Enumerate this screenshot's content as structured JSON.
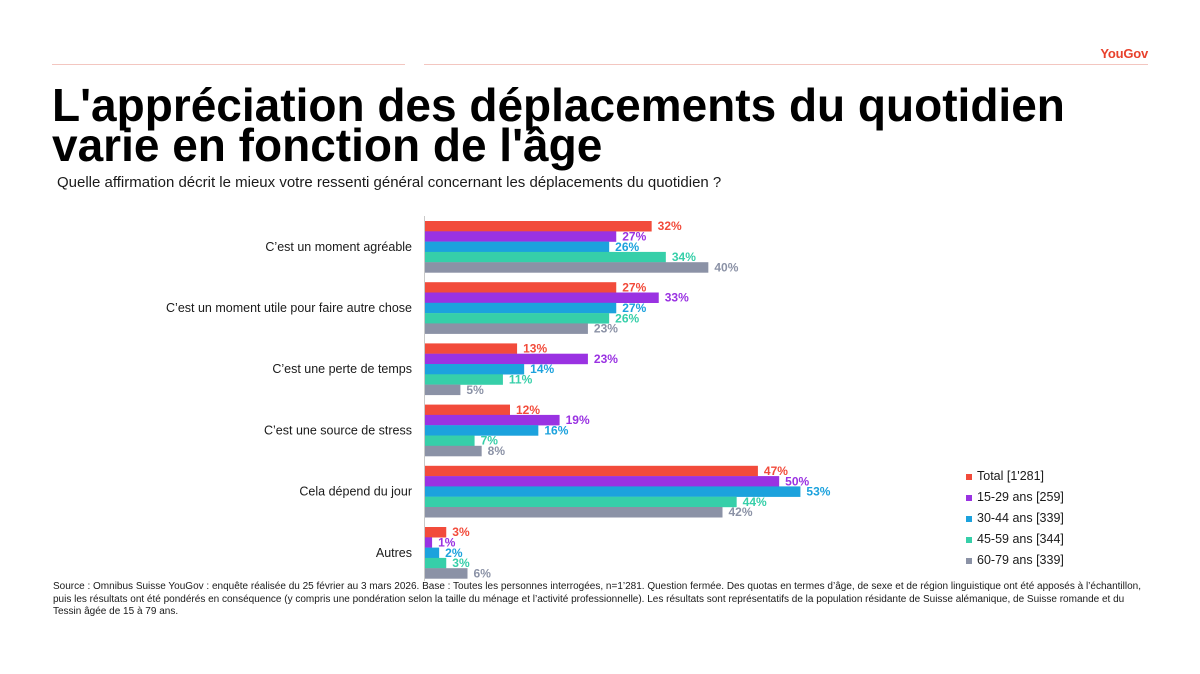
{
  "brand": {
    "logo_text": "YouGov",
    "accent_color": "#e8412c"
  },
  "title": "L'appréciation des déplacements du quotidien varie en fonction de l'âge",
  "subtitle": "Quelle affirmation décrit le mieux votre ressenti général concernant les déplacements du quotidien ?",
  "chart_data": {
    "type": "bar",
    "orientation": "horizontal",
    "xlim": [
      0,
      60
    ],
    "grid": false,
    "legend_position": "right",
    "value_suffix": "%",
    "categories": [
      "C’est un moment agréable",
      "C’est un moment utile pour faire autre chose",
      "C’est une perte de temps",
      "C’est une source de stress",
      "Cela dépend du jour",
      "Autres"
    ],
    "series": [
      {
        "name": "Total [1'281]",
        "color": "#f24b3b",
        "values": [
          32,
          27,
          13,
          12,
          47,
          3
        ]
      },
      {
        "name": "15-29 ans [259]",
        "color": "#9a32e2",
        "values": [
          27,
          33,
          23,
          19,
          50,
          1
        ]
      },
      {
        "name": "30-44 ans [339]",
        "color": "#1ca2dd",
        "values": [
          26,
          27,
          14,
          16,
          53,
          2
        ]
      },
      {
        "name": "45-59 ans [344]",
        "color": "#36cfa9",
        "values": [
          34,
          26,
          11,
          7,
          44,
          3
        ]
      },
      {
        "name": "60-79 ans [339]",
        "color": "#8b92a6",
        "values": [
          40,
          23,
          5,
          8,
          42,
          6
        ]
      }
    ]
  },
  "source": "Source : Omnibus Suisse YouGov : enquête réalisée du 25 février au 3 mars 2026. Base : Toutes les personnes interrogées, n=1’281. Question fermée. Des quotas en termes d’âge, de sexe et de région linguistique ont été apposés à l’échantillon, puis les résultats ont été pondérés en conséquence (y compris une pondération selon la taille du ménage et l’activité professionnelle). Les résultats sont représentatifs de la population résidante de Suisse alémanique, de Suisse romande et du Tessin âgée de 15 à 79 ans."
}
